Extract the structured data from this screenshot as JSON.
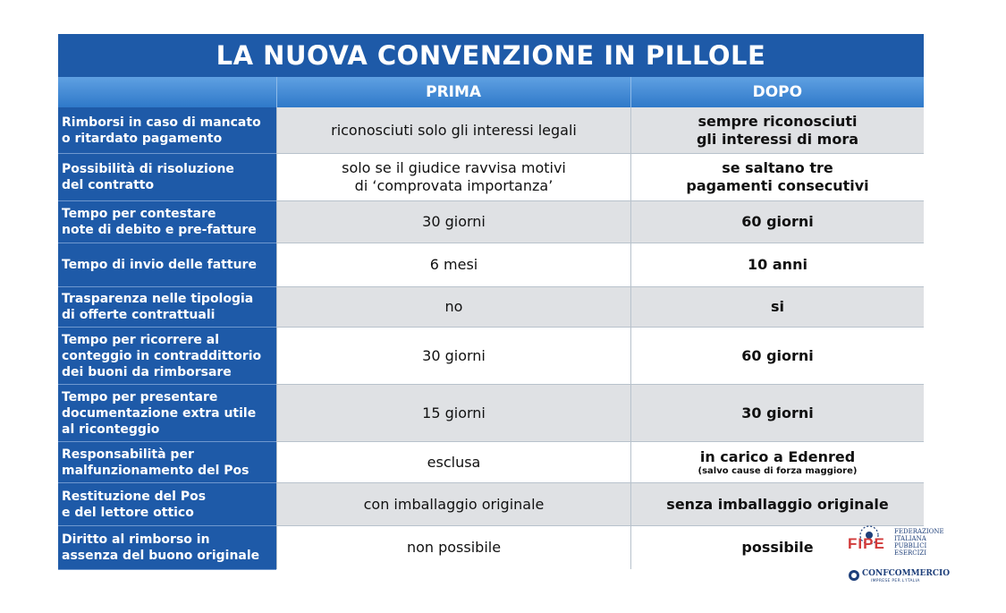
{
  "title": "LA NUOVA CONVENZIONE IN PILLOLE",
  "columns": {
    "before": "PRIMA",
    "after": "DOPO"
  },
  "rows": [
    {
      "label": "Rimborsi in caso di mancato\no ritardato pagamento",
      "before": "riconosciuti solo gli interessi legali",
      "after": "sempre riconosciuti\ngli interessi di mora",
      "note": ""
    },
    {
      "label": "Possibilità di risoluzione\ndel contratto",
      "before": "solo se il giudice ravvisa motivi\ndi ‘comprovata importanza’",
      "after": "se saltano tre\npagamenti consecutivi",
      "note": ""
    },
    {
      "label": "Tempo per contestare\nnote di debito e pre-fatture",
      "before": "30 giorni",
      "after": "60 giorni",
      "note": ""
    },
    {
      "label": "Tempo di invio delle fatture",
      "before": "6 mesi",
      "after": "10 anni",
      "note": ""
    },
    {
      "label": "Trasparenza nelle tipologia\ndi offerte contrattuali",
      "before": "no",
      "after": "si",
      "note": ""
    },
    {
      "label": "Tempo per ricorrere al\nconteggio in contraddittorio\ndei buoni da rimborsare",
      "before": "30 giorni",
      "after": "60 giorni",
      "note": ""
    },
    {
      "label": "Tempo per presentare\ndocumentazione extra utile\nal riconteggio",
      "before": "15 giorni",
      "after": "30 giorni",
      "note": ""
    },
    {
      "label": "Responsabilità per\nmalfunzionamento del Pos",
      "before": "esclusa",
      "after": "in carico a Edenred",
      "note": "(salvo cause di forza maggiore)"
    },
    {
      "label": "Restituzione del Pos\ne del lettore ottico",
      "before": "con imballaggio originale",
      "after": "senza imballaggio originale",
      "note": ""
    },
    {
      "label": "Diritto al rimborso in\nassenza del buono originale",
      "before": "non possibile",
      "after": "possibile",
      "note": ""
    }
  ],
  "logo": {
    "fipe": "FIPE",
    "federation": "FEDERAZIONE\nITALIANA\nPUBBLICI\nESERCIZI",
    "confcommercio": "CONFCOMMERCIO",
    "confcommercio_sub": "IMPRESE PER L'ITALIA"
  },
  "colors": {
    "title_bg": "#1e5aa8",
    "header_bg": "#3d86d4",
    "row_grey": "#dfe1e4",
    "logo_red": "#d23a3a"
  }
}
